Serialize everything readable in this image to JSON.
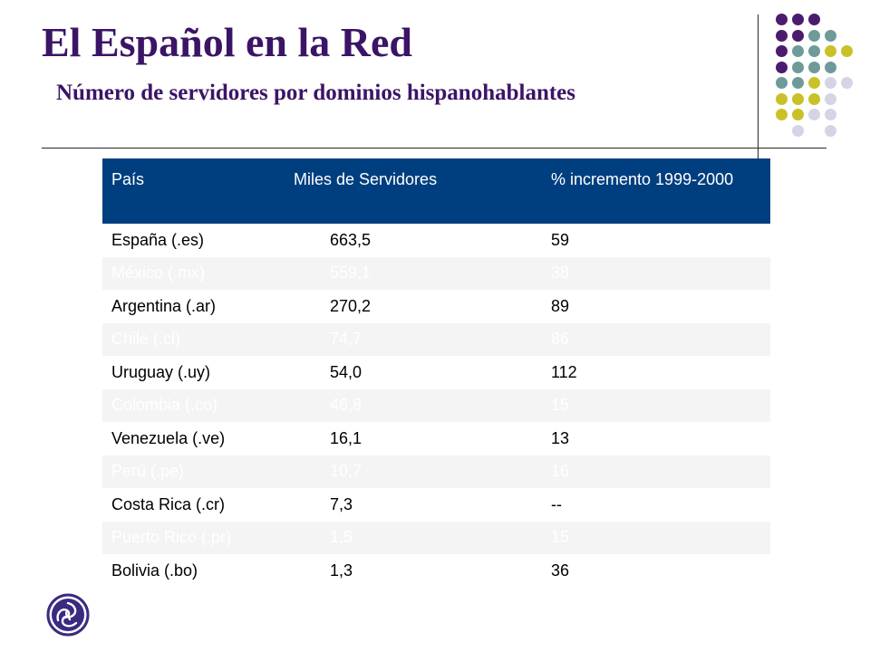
{
  "slide": {
    "title": "El Español en la Red",
    "subtitle": "Número de servidores por dominios hispanohablantes"
  },
  "colors": {
    "title": "#3b1466",
    "header_bg": "#003f7f",
    "header_text": "#ffffff",
    "even_row_bg": "#f4f4f4",
    "dot_purple": "#4b1c6e",
    "dot_teal": "#6e9a9a",
    "dot_olive": "#c8c228",
    "dot_lavender": "#d4d4e6"
  },
  "table": {
    "headers": [
      "País",
      "Miles de Servidores",
      "% incremento 1999-2000"
    ],
    "rows": [
      {
        "pais": "España (.es)",
        "servidores": "663,5",
        "incremento": "59"
      },
      {
        "pais": "México (.mx)",
        "servidores": "559,1",
        "incremento": "38"
      },
      {
        "pais": "Argentina (.ar)",
        "servidores": "270,2",
        "incremento": "89"
      },
      {
        "pais": "Chile (.cl)",
        "servidores": "74,7",
        "incremento": "86"
      },
      {
        "pais": "Uruguay (.uy)",
        "servidores": "54,0",
        "incremento": "112"
      },
      {
        "pais": "Colombia (.co)",
        "servidores": "46,8",
        "incremento": "15"
      },
      {
        "pais": "Venezuela (.ve)",
        "servidores": "16,1",
        "incremento": "13"
      },
      {
        "pais": "Perú (.pe)",
        "servidores": "10,7",
        "incremento": "16"
      },
      {
        "pais": "Costa Rica (.cr)",
        "servidores": "7,3",
        "incremento": "--"
      },
      {
        "pais": "Puerto Rico (.pr)",
        "servidores": "1,5",
        "incremento": "15"
      },
      {
        "pais": "Bolivia (.bo)",
        "servidores": "1,3",
        "incremento": "36"
      }
    ]
  },
  "decor": {
    "dot_grid_icon": "dot-grid-decoration",
    "logo_icon": "triskelion-logo-icon"
  }
}
